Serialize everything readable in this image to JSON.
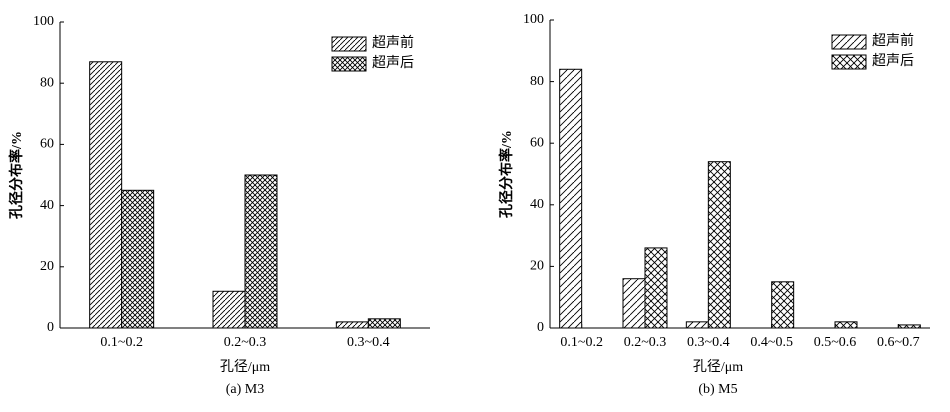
{
  "chart_data": [
    {
      "type": "bar",
      "caption": "(a) M3",
      "xlabel": "孔径/μm",
      "ylabel": "孔径分布率/%",
      "categories": [
        "0.1~0.2",
        "0.2~0.3",
        "0.3~0.4"
      ],
      "series": [
        {
          "name": "超声前",
          "color": "#000000",
          "hatch": "diagonal",
          "values": [
            87,
            12,
            2
          ]
        },
        {
          "name": "超声后",
          "color": "#000000",
          "hatch": "cross",
          "values": [
            45,
            50,
            3
          ]
        }
      ],
      "ylim": [
        0,
        100
      ],
      "yticks": [
        0,
        20,
        40,
        60,
        80,
        100
      ],
      "legend": "upper right"
    },
    {
      "type": "bar",
      "caption": "(b) M5",
      "xlabel": "孔径/μm",
      "ylabel": "孔径分布率/%",
      "categories": [
        "0.1~0.2",
        "0.2~0.3",
        "0.3~0.4",
        "0.4~0.5",
        "0.5~0.6",
        "0.6~0.7"
      ],
      "series": [
        {
          "name": "超声前",
          "color": "#000000",
          "hatch": "diagonal",
          "values": [
            84,
            16,
            2,
            0,
            0,
            0
          ]
        },
        {
          "name": "超声后",
          "color": "#000000",
          "hatch": "cross",
          "values": [
            0,
            26,
            54,
            15,
            2,
            1
          ]
        }
      ],
      "ylim": [
        0,
        100
      ],
      "yticks": [
        0,
        20,
        40,
        60,
        80,
        100
      ],
      "legend": "upper right"
    }
  ]
}
